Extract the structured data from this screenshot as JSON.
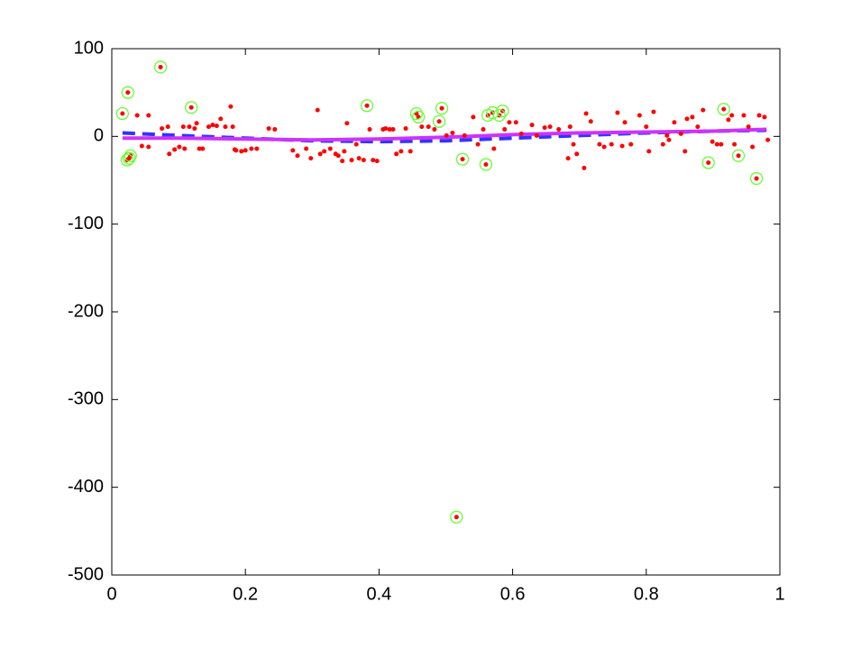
{
  "chart_data": {
    "type": "scatter",
    "xlim": [
      0,
      1
    ],
    "xticks": [
      0,
      0.2,
      0.4,
      0.6,
      0.8,
      1
    ],
    "ylim": [
      -500,
      100
    ],
    "yticks": [
      -500,
      -400,
      -300,
      -200,
      -100,
      0,
      100
    ],
    "grid": false,
    "series": [
      {
        "color": "#ff0000",
        "mode": "markers",
        "x": [
          0.016,
          0.024,
          0.073,
          0.119,
          0.023,
          0.026,
          0.028,
          0.382,
          0.456,
          0.459,
          0.494,
          0.49,
          0.525,
          0.516,
          0.56,
          0.563,
          0.57,
          0.58,
          0.585,
          0.893,
          0.916,
          0.938,
          0.965,
          0.038,
          0.055,
          0.045,
          0.055,
          0.075,
          0.084,
          0.086,
          0.094,
          0.101,
          0.107,
          0.109,
          0.116,
          0.124,
          0.127,
          0.131,
          0.136,
          0.145,
          0.151,
          0.157,
          0.163,
          0.17,
          0.178,
          0.181,
          0.186,
          0.194,
          0.2,
          0.209,
          0.217,
          0.235,
          0.244,
          0.271,
          0.298,
          0.308,
          0.318,
          0.327,
          0.335,
          0.339,
          0.348,
          0.352,
          0.359,
          0.366,
          0.37,
          0.377,
          0.386,
          0.391,
          0.406,
          0.41,
          0.416,
          0.421,
          0.426,
          0.433,
          0.44,
          0.447,
          0.464,
          0.474,
          0.483,
          0.501,
          0.51,
          0.528,
          0.541,
          0.548,
          0.556,
          0.572,
          0.588,
          0.595,
          0.605,
          0.613,
          0.629,
          0.636,
          0.648,
          0.656,
          0.669,
          0.683,
          0.686,
          0.691,
          0.696,
          0.707,
          0.71,
          0.717,
          0.73,
          0.737,
          0.748,
          0.757,
          0.764,
          0.768,
          0.777,
          0.79,
          0.8,
          0.804,
          0.811,
          0.825,
          0.834,
          0.842,
          0.852,
          0.861,
          0.869,
          0.877,
          0.885,
          0.899,
          0.906,
          0.923,
          0.928,
          0.932,
          0.946,
          0.953,
          0.959,
          0.969,
          0.977,
          0.982,
          0.912,
          0.858,
          0.831,
          0.184,
          0.278,
          0.291,
          0.312,
          0.397,
          0.345
        ],
        "values": [
          26,
          50,
          79,
          33,
          -27,
          -25,
          -22,
          35,
          26,
          22,
          32,
          17,
          -26,
          -434,
          -32,
          24,
          27,
          24,
          29,
          -30,
          31,
          -22,
          -48,
          24,
          24,
          -11,
          -12,
          9,
          11,
          -20,
          -15,
          -12,
          11,
          -14,
          11,
          9,
          15,
          -14,
          -14,
          11,
          13,
          12,
          20,
          11,
          34,
          11,
          -16,
          -17,
          -16,
          -14,
          -14,
          9,
          8,
          -16,
          -25,
          30,
          -17,
          -14,
          -20,
          -22,
          -17,
          15,
          -27,
          -9,
          -25,
          -27,
          8,
          -27,
          8,
          9,
          8,
          8,
          -20,
          -17,
          9,
          -17,
          11,
          11,
          8,
          1,
          4,
          1,
          22,
          -9,
          8,
          -14,
          8,
          16,
          16,
          3,
          13,
          1,
          10,
          11,
          8,
          -25,
          11,
          -9,
          -20,
          -36,
          26,
          17,
          -9,
          -12,
          -9,
          27,
          -11,
          16,
          -9,
          24,
          11,
          -17,
          28,
          -9,
          -4,
          16,
          3,
          20,
          22,
          11,
          30,
          -6,
          -9,
          19,
          24,
          -9,
          24,
          11,
          -12,
          24,
          22,
          -4,
          -9,
          -17,
          1,
          -15,
          -22,
          -14,
          -20,
          -28,
          -28
        ]
      },
      {
        "color": "#66ff33",
        "mode": "circles",
        "x": [
          0.016,
          0.024,
          0.073,
          0.119,
          0.023,
          0.026,
          0.028,
          0.382,
          0.456,
          0.459,
          0.494,
          0.49,
          0.525,
          0.516,
          0.56,
          0.563,
          0.57,
          0.58,
          0.585,
          0.893,
          0.916,
          0.938,
          0.965
        ],
        "values": [
          26,
          50,
          79,
          33,
          -27,
          -25,
          -22,
          35,
          26,
          22,
          32,
          17,
          -26,
          -434,
          -32,
          24,
          27,
          24,
          29,
          -30,
          31,
          -22,
          -48
        ]
      },
      {
        "color": "#3333ff",
        "mode": "dashed-line",
        "x": [
          0.016,
          0.1,
          0.2,
          0.3,
          0.4,
          0.5,
          0.6,
          0.7,
          0.8,
          0.9,
          0.98
        ],
        "values": [
          4,
          1,
          -2,
          -5,
          -6,
          -5,
          -2,
          1,
          4,
          6,
          7
        ]
      },
      {
        "color": "#cc33ff",
        "mode": "line",
        "x": [
          0.016,
          0.1,
          0.2,
          0.3,
          0.4,
          0.5,
          0.6,
          0.7,
          0.8,
          0.9,
          0.98
        ],
        "values": [
          -2,
          -2,
          -3,
          -4,
          -3,
          -1,
          2,
          4,
          5,
          6,
          8
        ]
      }
    ]
  }
}
